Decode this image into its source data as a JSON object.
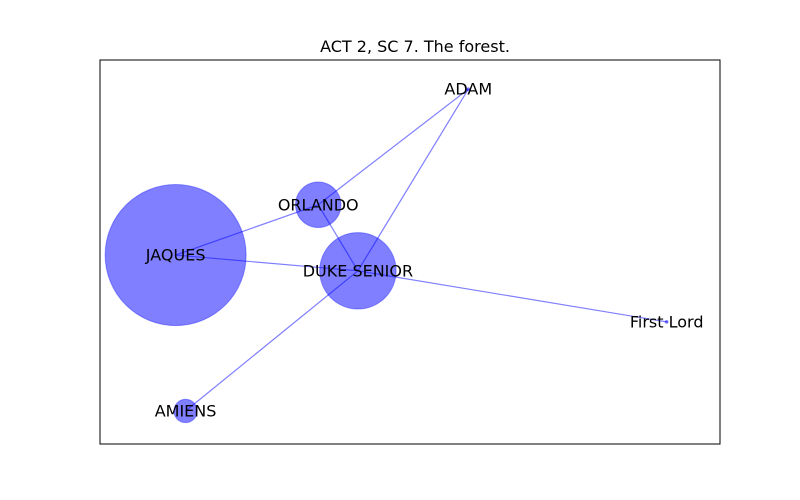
{
  "title": "ACT 2, SC 7. The forest.",
  "colors": {
    "node_fill": "#0000ff",
    "edge_stroke": "#0000ff",
    "frame": "#000000",
    "text": "#000000"
  },
  "chart_data": {
    "type": "network",
    "title": "ACT 2, SC 7. The forest.",
    "xlim": [
      0,
      1
    ],
    "ylim": [
      0,
      1
    ],
    "grid": false,
    "nodes": [
      {
        "id": "ADAM",
        "label": "ADAM",
        "x": 0.594,
        "y": 0.924,
        "weight": 2
      },
      {
        "id": "ORLANDO",
        "label": "ORLANDO",
        "x": 0.352,
        "y": 0.623,
        "weight": 530
      },
      {
        "id": "JAQUES",
        "label": "JAQUES",
        "x": 0.122,
        "y": 0.492,
        "weight": 5100
      },
      {
        "id": "DUKE SENIOR",
        "label": "DUKE SENIOR",
        "x": 0.416,
        "y": 0.451,
        "weight": 1500
      },
      {
        "id": "First Lord",
        "label": "First Lord",
        "x": 0.914,
        "y": 0.318,
        "weight": 2
      },
      {
        "id": "AMIENS",
        "label": "AMIENS",
        "x": 0.138,
        "y": 0.086,
        "weight": 140
      }
    ],
    "edges": [
      {
        "source": "ADAM",
        "target": "ORLANDO"
      },
      {
        "source": "ADAM",
        "target": "DUKE SENIOR"
      },
      {
        "source": "JAQUES",
        "target": "ORLANDO"
      },
      {
        "source": "JAQUES",
        "target": "DUKE SENIOR"
      },
      {
        "source": "ORLANDO",
        "target": "DUKE SENIOR"
      },
      {
        "source": "DUKE SENIOR",
        "target": "First Lord"
      },
      {
        "source": "DUKE SENIOR",
        "target": "AMIENS"
      }
    ]
  }
}
